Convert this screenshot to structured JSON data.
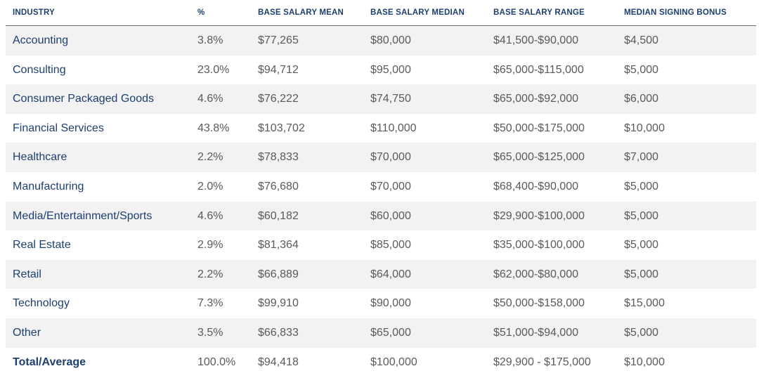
{
  "headers": {
    "industry": "INDUSTRY",
    "percent": "%",
    "mean": "BASE SALARY MEAN",
    "median": "BASE SALARY MEDIAN",
    "range": "BASE SALARY RANGE",
    "bonus": "MEDIAN SIGNING BONUS"
  },
  "rows": [
    {
      "industry": "Accounting",
      "percent": "3.8%",
      "mean": "$77,265",
      "median": "$80,000",
      "range": "$41,500-$90,000",
      "bonus": "$4,500"
    },
    {
      "industry": "Consulting",
      "percent": "23.0%",
      "mean": "$94,712",
      "median": "$95,000",
      "range": "$65,000-$115,000",
      "bonus": "$5,000"
    },
    {
      "industry": "Consumer Packaged Goods",
      "percent": "4.6%",
      "mean": "$76,222",
      "median": "$74,750",
      "range": "$65,000-$92,000",
      "bonus": "$6,000"
    },
    {
      "industry": "Financial Services",
      "percent": "43.8%",
      "mean": "$103,702",
      "median": "$110,000",
      "range": "$50,000-$175,000",
      "bonus": "$10,000"
    },
    {
      "industry": "Healthcare",
      "percent": "2.2%",
      "mean": "$78,833",
      "median": "$70,000",
      "range": "$65,000-$125,000",
      "bonus": "$7,000"
    },
    {
      "industry": "Manufacturing",
      "percent": "2.0%",
      "mean": "$76,680",
      "median": "$70,000",
      "range": "$68,400-$90,000",
      "bonus": "$5,000"
    },
    {
      "industry": "Media/Entertainment/Sports",
      "percent": "4.6%",
      "mean": "$60,182",
      "median": "$60,000",
      "range": "$29,900-$100,000",
      "bonus": "$5,000"
    },
    {
      "industry": "Real Estate",
      "percent": "2.9%",
      "mean": "$81,364",
      "median": "$85,000",
      "range": "$35,000-$100,000",
      "bonus": "$5,000"
    },
    {
      "industry": "Retail",
      "percent": "2.2%",
      "mean": "$66,889",
      "median": "$64,000",
      "range": "$62,000-$80,000",
      "bonus": "$5,000"
    },
    {
      "industry": "Technology",
      "percent": "7.3%",
      "mean": "$99,910",
      "median": "$90,000",
      "range": "$50,000-$158,000",
      "bonus": "$15,000"
    },
    {
      "industry": "Other",
      "percent": "3.5%",
      "mean": "$66,833",
      "median": "$65,000",
      "range": "$51,000-$94,000",
      "bonus": "$5,000"
    }
  ],
  "total": {
    "industry": "Total/Average",
    "percent": "100.0%",
    "mean": "$94,418",
    "median": "$100,000",
    "range": "$29,900 - $175,000",
    "bonus": "$10,000"
  },
  "colors": {
    "header_text": "#1e3f6e",
    "industry_text": "#1e3f6e",
    "value_text": "#5a5a5a",
    "shaded_row": "#f2f2f2"
  }
}
